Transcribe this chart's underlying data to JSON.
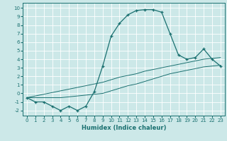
{
  "title": "",
  "xlabel": "Humidex (Indice chaleur)",
  "xlim": [
    -0.5,
    23.5
  ],
  "ylim": [
    -2.6,
    10.6
  ],
  "xticks": [
    0,
    1,
    2,
    3,
    4,
    5,
    6,
    7,
    8,
    9,
    10,
    11,
    12,
    13,
    14,
    15,
    16,
    17,
    18,
    19,
    20,
    21,
    22,
    23
  ],
  "yticks": [
    -2,
    -1,
    0,
    1,
    2,
    3,
    4,
    5,
    6,
    7,
    8,
    9,
    10
  ],
  "bg_color": "#cce8e8",
  "grid_color": "#ffffff",
  "line_color": "#1a7070",
  "line1_x": [
    0,
    1,
    2,
    3,
    4,
    5,
    6,
    7,
    8,
    9,
    10,
    11,
    12,
    13,
    14,
    15,
    16,
    17,
    18,
    19,
    20,
    21,
    22,
    23
  ],
  "line1_y": [
    -0.5,
    -1.0,
    -1.0,
    -1.5,
    -2.0,
    -1.5,
    -2.0,
    -1.5,
    0.2,
    3.2,
    6.7,
    8.2,
    9.2,
    9.7,
    9.8,
    9.8,
    9.5,
    7.0,
    4.5,
    4.0,
    4.2,
    5.2,
    4.0,
    3.2
  ],
  "line2_x": [
    0,
    1,
    2,
    3,
    4,
    5,
    6,
    7,
    8,
    9,
    10,
    11,
    12,
    13,
    14,
    15,
    16,
    17,
    18,
    19,
    20,
    21,
    22,
    23
  ],
  "line2_y": [
    -0.5,
    -0.3,
    -0.1,
    0.1,
    0.3,
    0.5,
    0.7,
    0.9,
    1.1,
    1.3,
    1.6,
    1.9,
    2.1,
    2.3,
    2.6,
    2.8,
    3.0,
    3.2,
    3.4,
    3.6,
    3.8,
    4.0,
    4.1,
    4.2
  ],
  "line3_x": [
    0,
    1,
    2,
    3,
    4,
    5,
    6,
    7,
    8,
    9,
    10,
    11,
    12,
    13,
    14,
    15,
    16,
    17,
    18,
    19,
    20,
    21,
    22,
    23
  ],
  "line3_y": [
    -0.5,
    -0.5,
    -0.5,
    -0.5,
    -0.5,
    -0.4,
    -0.3,
    -0.2,
    -0.1,
    0.0,
    0.3,
    0.6,
    0.9,
    1.1,
    1.4,
    1.7,
    2.0,
    2.3,
    2.5,
    2.7,
    2.9,
    3.1,
    3.2,
    3.3
  ]
}
